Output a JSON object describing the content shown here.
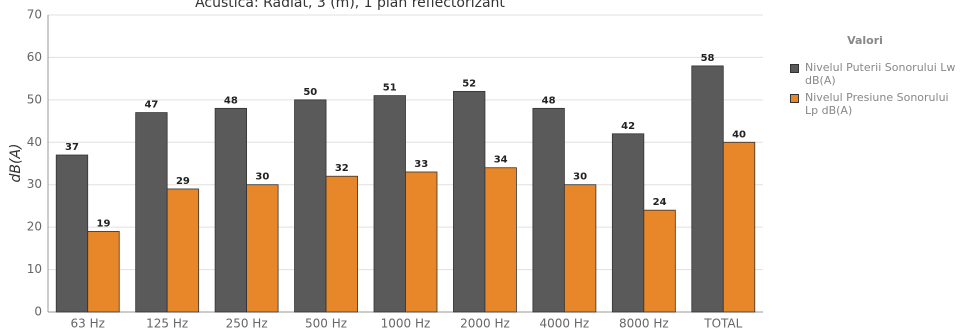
{
  "chart_data": {
    "type": "bar",
    "title": "Acustica: Radiat, 3 (m), 1 plan reflectorizant",
    "y_label": "dB(A)",
    "legend_title": "Valori",
    "categories": [
      "63 Hz",
      "125 Hz",
      "250 Hz",
      "500 Hz",
      "1000 Hz",
      "2000 Hz",
      "4000 Hz",
      "8000 Hz",
      "TOTAL"
    ],
    "series": [
      {
        "name": "Nivelul Puterii Sonorului Lw dB(A)",
        "color": "#5a5a5a",
        "values": [
          37,
          47,
          48,
          50,
          51,
          52,
          48,
          42,
          58
        ]
      },
      {
        "name": "Nivelul Presiune Sonorului Lp dB(A)",
        "color": "#e8862a",
        "values": [
          19,
          29,
          30,
          32,
          33,
          34,
          30,
          24,
          40
        ]
      }
    ],
    "ylim": [
      0,
      70
    ],
    "yticks": [
      0,
      10,
      20,
      30,
      40,
      50,
      60,
      70
    ],
    "grid": true
  }
}
